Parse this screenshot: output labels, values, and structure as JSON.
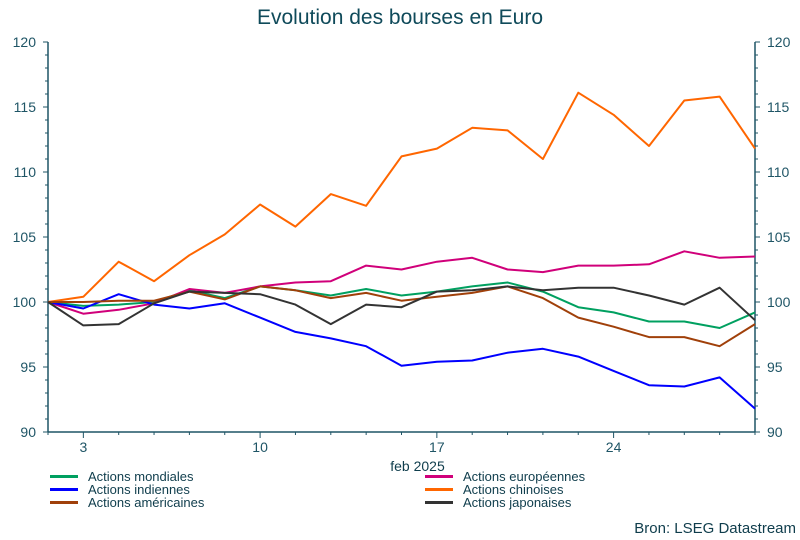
{
  "chart_data": {
    "type": "line",
    "title": "Evolution des bourses en Euro",
    "xlabel": "feb 2025",
    "ylabel": "",
    "ylim": [
      90,
      120
    ],
    "yticks": [
      90,
      95,
      100,
      105,
      110,
      115,
      120
    ],
    "y_axis_both_sides": true,
    "grid": false,
    "legend_placement": "bottom",
    "x": [
      "2025-01-31",
      "2025-02-03",
      "2025-02-04",
      "2025-02-05",
      "2025-02-06",
      "2025-02-07",
      "2025-02-10",
      "2025-02-11",
      "2025-02-12",
      "2025-02-13",
      "2025-02-14",
      "2025-02-17",
      "2025-02-18",
      "2025-02-19",
      "2025-02-20",
      "2025-02-21",
      "2025-02-24",
      "2025-02-25",
      "2025-02-26",
      "2025-02-27",
      "2025-02-28"
    ],
    "xtick_labels": [
      {
        "index": 1,
        "label": "3"
      },
      {
        "index": 6,
        "label": "10"
      },
      {
        "index": 11,
        "label": "17"
      },
      {
        "index": 16,
        "label": "24"
      }
    ],
    "series": [
      {
        "name": "Actions mondiales",
        "color": "#00a060",
        "values": [
          100,
          99.7,
          99.8,
          100,
          100.9,
          100.3,
          101.2,
          100.9,
          100.5,
          101.0,
          100.5,
          100.8,
          101.2,
          101.5,
          100.8,
          99.6,
          99.2,
          98.5,
          98.5,
          98.0,
          99.2
        ]
      },
      {
        "name": "Actions européennes",
        "color": "#d0007a",
        "values": [
          100,
          99.1,
          99.4,
          99.9,
          101.0,
          100.7,
          101.2,
          101.5,
          101.6,
          102.8,
          102.5,
          103.1,
          103.4,
          102.5,
          102.3,
          102.8,
          102.8,
          102.9,
          103.9,
          103.4,
          103.5
        ]
      },
      {
        "name": "Actions indiennes",
        "color": "#0000ff",
        "values": [
          100,
          99.5,
          100.6,
          99.8,
          99.5,
          99.9,
          98.8,
          97.7,
          97.2,
          96.6,
          95.1,
          95.4,
          95.5,
          96.1,
          96.4,
          95.8,
          94.7,
          93.6,
          93.5,
          94.2,
          91.8
        ]
      },
      {
        "name": "Actions chinoises",
        "color": "#ff6600",
        "values": [
          100,
          100.4,
          103.1,
          101.6,
          103.6,
          105.2,
          107.5,
          105.8,
          108.3,
          107.4,
          111.2,
          111.8,
          113.4,
          113.2,
          111.0,
          116.1,
          114.4,
          112.0,
          115.5,
          115.8,
          111.8
        ]
      },
      {
        "name": "Actions américaines",
        "color": "#a0400a",
        "values": [
          100,
          100,
          100.1,
          100.1,
          100.8,
          100.2,
          101.2,
          100.9,
          100.3,
          100.7,
          100.1,
          100.4,
          100.7,
          101.2,
          100.3,
          98.8,
          98.1,
          97.3,
          97.3,
          96.6,
          98.3
        ]
      },
      {
        "name": "Actions japonaises",
        "color": "#333333",
        "values": [
          100,
          98.2,
          98.3,
          99.9,
          100.8,
          100.7,
          100.6,
          99.8,
          98.3,
          99.8,
          99.6,
          100.8,
          100.9,
          101.2,
          100.9,
          101.1,
          101.1,
          100.5,
          99.8,
          101.1,
          98.6
        ]
      }
    ],
    "source": "Bron: LSEG Datastream"
  }
}
